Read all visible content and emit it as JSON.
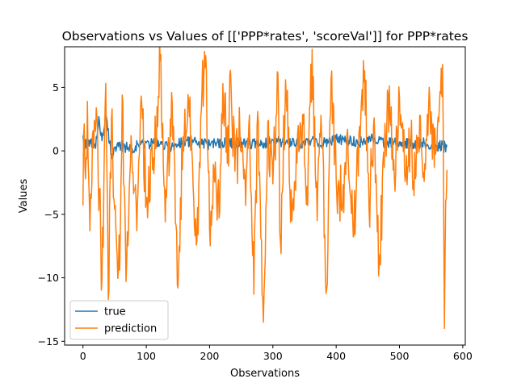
{
  "chart_data": {
    "type": "line",
    "title": "Observations vs Values of [['PPP*rates', 'scoreVal']] for PPP*rates",
    "xlabel": "Observations",
    "ylabel": "Values",
    "xlim": [
      -29,
      604
    ],
    "ylim": [
      -15.3,
      8.2
    ],
    "xticks": [
      0,
      100,
      200,
      300,
      400,
      500,
      600
    ],
    "yticks": [
      -15,
      -10,
      -5,
      0,
      5
    ],
    "grid": false,
    "legend_position": "lower-left",
    "n_points": 576,
    "series": [
      {
        "name": "true",
        "color": "#1f77b4",
        "keypoints": [
          [
            0,
            1.2
          ],
          [
            6,
            0.3
          ],
          [
            12,
            0.6
          ],
          [
            20,
            0.2
          ],
          [
            25,
            2.7
          ],
          [
            30,
            0.8
          ],
          [
            36,
            2.7
          ],
          [
            45,
            -0.2
          ],
          [
            60,
            0.4
          ],
          [
            75,
            0.2
          ],
          [
            90,
            0.5
          ],
          [
            110,
            0.6
          ],
          [
            125,
            0.5
          ],
          [
            140,
            0.3
          ],
          [
            160,
            0.8
          ],
          [
            180,
            0.6
          ],
          [
            200,
            0.5
          ],
          [
            220,
            0.7
          ],
          [
            240,
            0.6
          ],
          [
            260,
            0.7
          ],
          [
            280,
            0.4
          ],
          [
            300,
            0.9
          ],
          [
            320,
            0.6
          ],
          [
            340,
            0.5
          ],
          [
            360,
            0.7
          ],
          [
            380,
            0.6
          ],
          [
            400,
            0.9
          ],
          [
            420,
            0.8
          ],
          [
            440,
            0.7
          ],
          [
            460,
            1.0
          ],
          [
            480,
            0.6
          ],
          [
            500,
            0.7
          ],
          [
            520,
            0.5
          ],
          [
            540,
            0.6
          ],
          [
            560,
            0.4
          ],
          [
            575,
            0.3
          ]
        ]
      },
      {
        "name": "prediction",
        "color": "#ff7f0e",
        "keypoints": [
          [
            0,
            -4.3
          ],
          [
            1,
            1.3
          ],
          [
            4,
            -2.2
          ],
          [
            7,
            3.9
          ],
          [
            11,
            -6.3
          ],
          [
            16,
            1.6
          ],
          [
            22,
            2.7
          ],
          [
            30,
            -10.2
          ],
          [
            36,
            5.3
          ],
          [
            40,
            -11.7
          ],
          [
            45,
            2.5
          ],
          [
            50,
            -4.6
          ],
          [
            58,
            -9.4
          ],
          [
            62,
            4.4
          ],
          [
            68,
            -10.3
          ],
          [
            76,
            1.2
          ],
          [
            85,
            -6.3
          ],
          [
            93,
            3.5
          ],
          [
            100,
            -3.7
          ],
          [
            110,
            -1.5
          ],
          [
            122,
            7.1
          ],
          [
            130,
            -5.6
          ],
          [
            140,
            4.6
          ],
          [
            150,
            -10.8
          ],
          [
            158,
            1.1
          ],
          [
            168,
            2.7
          ],
          [
            175,
            -3.9
          ],
          [
            182,
            -6.6
          ],
          [
            188,
            4.7
          ],
          [
            194,
            7.5
          ],
          [
            200,
            -6.2
          ],
          [
            207,
            -1.5
          ],
          [
            215,
            -5.3
          ],
          [
            221,
            5.3
          ],
          [
            230,
            -1.2
          ],
          [
            232,
            6.0
          ],
          [
            240,
            -1.6
          ],
          [
            248,
            1.3
          ],
          [
            257,
            -4.3
          ],
          [
            262,
            2.1
          ],
          [
            270,
            -11.3
          ],
          [
            276,
            3.1
          ],
          [
            285,
            -13.5
          ],
          [
            292,
            2.3
          ],
          [
            300,
            -2.6
          ],
          [
            308,
            6.1
          ],
          [
            312,
            -7.2
          ],
          [
            320,
            5.6
          ],
          [
            330,
            -5.5
          ],
          [
            340,
            2.0
          ],
          [
            348,
            2.1
          ],
          [
            355,
            -4.3
          ],
          [
            362,
            8.0
          ],
          [
            370,
            -5.5
          ],
          [
            376,
            2.8
          ],
          [
            385,
            -10.9
          ],
          [
            392,
            5.7
          ],
          [
            400,
            -2.2
          ],
          [
            410,
            -4.3
          ],
          [
            418,
            1.7
          ],
          [
            428,
            -6.7
          ],
          [
            436,
            1.4
          ],
          [
            445,
            6.3
          ],
          [
            452,
            -4.7
          ],
          [
            460,
            2.6
          ],
          [
            468,
            -8.9
          ],
          [
            476,
            -1.3
          ],
          [
            482,
            4.5
          ],
          [
            492,
            -2.2
          ],
          [
            500,
            4.2
          ],
          [
            510,
            -1.9
          ],
          [
            518,
            0.8
          ],
          [
            525,
            -2.2
          ],
          [
            532,
            2.8
          ],
          [
            540,
            -1.0
          ],
          [
            548,
            3.9
          ],
          [
            555,
            -1.3
          ],
          [
            562,
            2.3
          ],
          [
            568,
            6.8
          ],
          [
            571,
            -14.0
          ],
          [
            573,
            -3.9
          ],
          [
            575,
            -1.5
          ]
        ]
      }
    ]
  }
}
